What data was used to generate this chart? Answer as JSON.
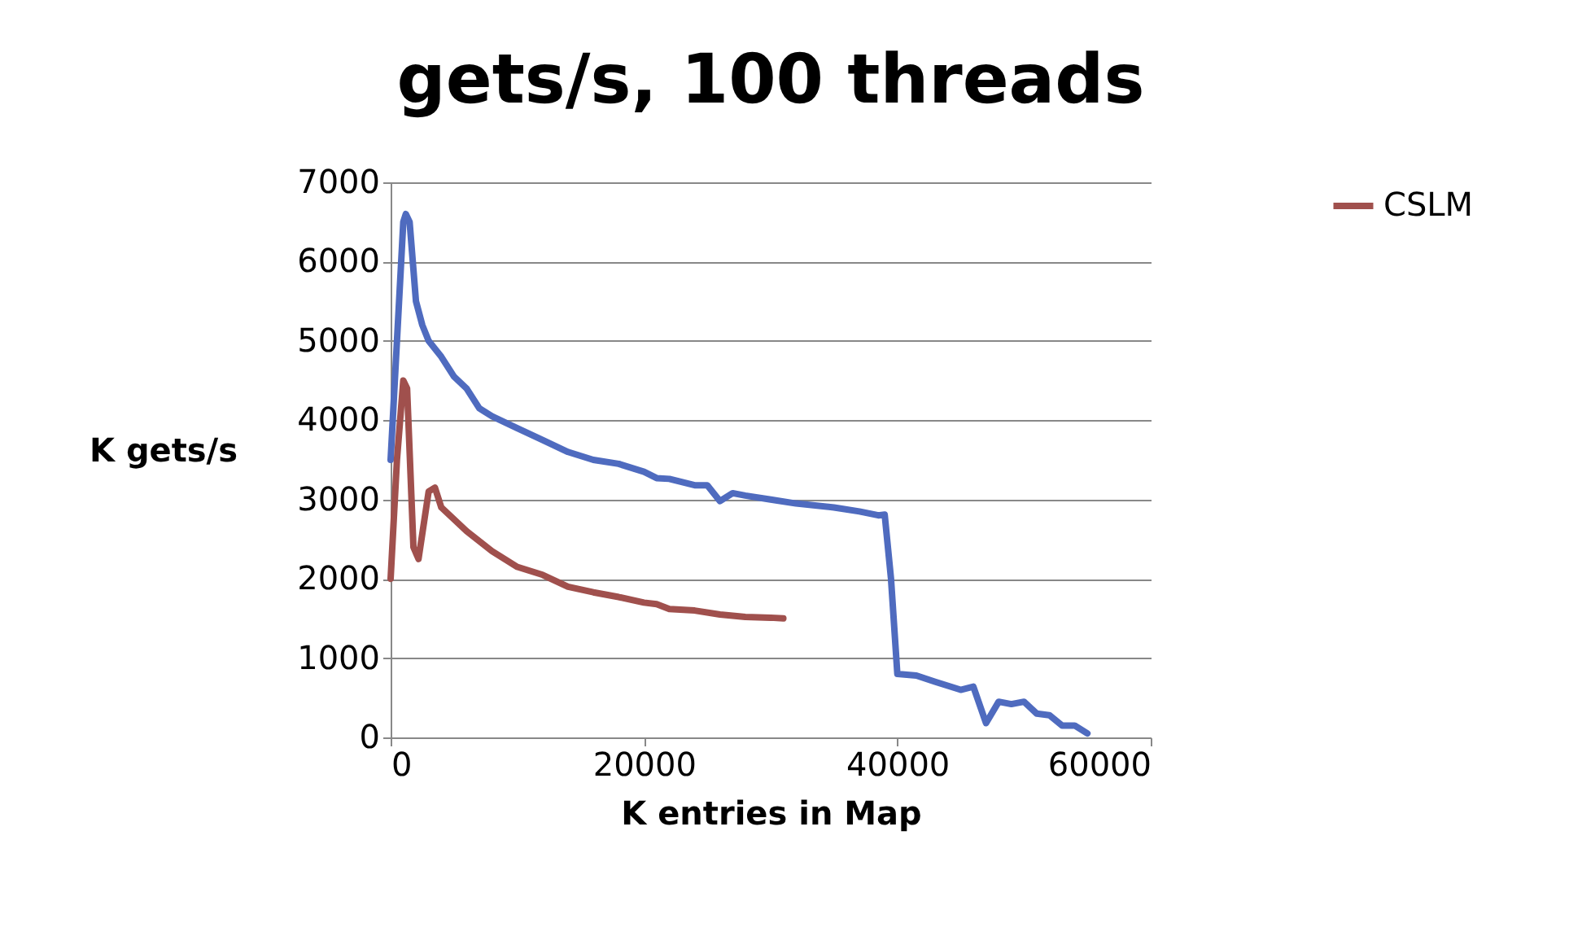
{
  "chart_data": {
    "type": "line",
    "title": "gets/s, 100 threads",
    "xlabel": "K entries in Map",
    "ylabel": "K gets/s",
    "xlim": [
      0,
      60000
    ],
    "xticks": [
      0,
      20000,
      40000,
      60000
    ],
    "ylim": [
      0,
      7000
    ],
    "yticks": [
      0,
      1000,
      2000,
      3000,
      4000,
      5000,
      6000,
      7000
    ],
    "grid": "y",
    "legend": "right",
    "line_style": "solid",
    "series": [
      {
        "color": "#4f6bbf",
        "x": [
          0,
          500,
          1000,
          1200,
          1500,
          2000,
          2500,
          3000,
          4000,
          5000,
          6000,
          7000,
          8000,
          10000,
          12000,
          14000,
          16000,
          18000,
          20000,
          21000,
          22000,
          24000,
          25000,
          26000,
          27000,
          28000,
          30000,
          32000,
          35000,
          37000,
          38500,
          39000,
          39500,
          40000,
          41500,
          43000,
          45000,
          46000,
          47000,
          48000,
          49000,
          50000,
          51000,
          52000,
          53000,
          54000,
          55000
        ],
        "values": [
          3500,
          5000,
          6500,
          6600,
          6500,
          5500,
          5200,
          5000,
          4800,
          4550,
          4400,
          4150,
          4050,
          3900,
          3750,
          3600,
          3500,
          3450,
          3350,
          3270,
          3260,
          3180,
          3180,
          2980,
          3080,
          3050,
          3000,
          2950,
          2900,
          2850,
          2800,
          2810,
          2000,
          800,
          780,
          700,
          600,
          640,
          180,
          450,
          420,
          450,
          300,
          280,
          150,
          150,
          50
        ]
      },
      {
        "name": "CSLM",
        "color": "#a0504d",
        "x": [
          0,
          500,
          1000,
          1300,
          1800,
          2200,
          3000,
          3500,
          4000,
          6000,
          8000,
          10000,
          12000,
          14000,
          16000,
          18000,
          20000,
          21000,
          22000,
          24000,
          26000,
          28000,
          30000,
          31000
        ],
        "values": [
          2000,
          3500,
          4500,
          4400,
          2400,
          2250,
          3100,
          3150,
          2900,
          2600,
          2350,
          2150,
          2050,
          1900,
          1830,
          1770,
          1700,
          1680,
          1620,
          1600,
          1550,
          1520,
          1510,
          1500
        ]
      }
    ]
  }
}
